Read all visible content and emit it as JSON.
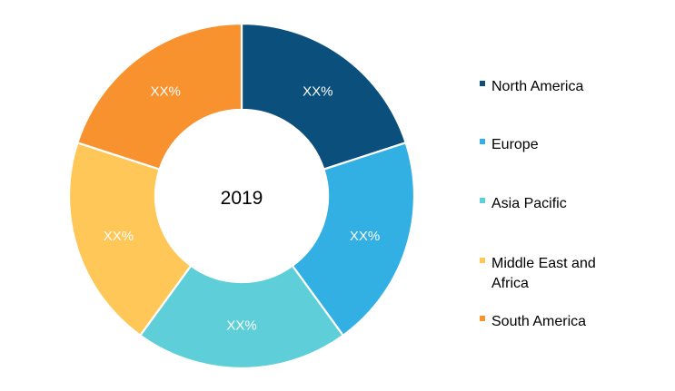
{
  "chart_data": {
    "type": "pie",
    "variant": "donut",
    "center_label": "2019",
    "categories": [
      "North America",
      "Europe",
      "Asia Pacific",
      "Middle East and Africa",
      "South America"
    ],
    "values": [
      20,
      20,
      20,
      20,
      20
    ],
    "data_labels": [
      "XX%",
      "XX%",
      "XX%",
      "XX%",
      "XX%"
    ],
    "colors": [
      "#0B4F7C",
      "#33B0E3",
      "#5ECFD8",
      "#FFC658",
      "#F7922E"
    ],
    "legend": {
      "position": "right",
      "items": [
        {
          "lines": [
            "North America"
          ]
        },
        {
          "lines": [
            "Europe"
          ]
        },
        {
          "lines": [
            "Asia Pacific"
          ]
        },
        {
          "lines": [
            "Middle East and",
            "Africa"
          ]
        },
        {
          "lines": [
            "South America"
          ]
        }
      ]
    }
  }
}
